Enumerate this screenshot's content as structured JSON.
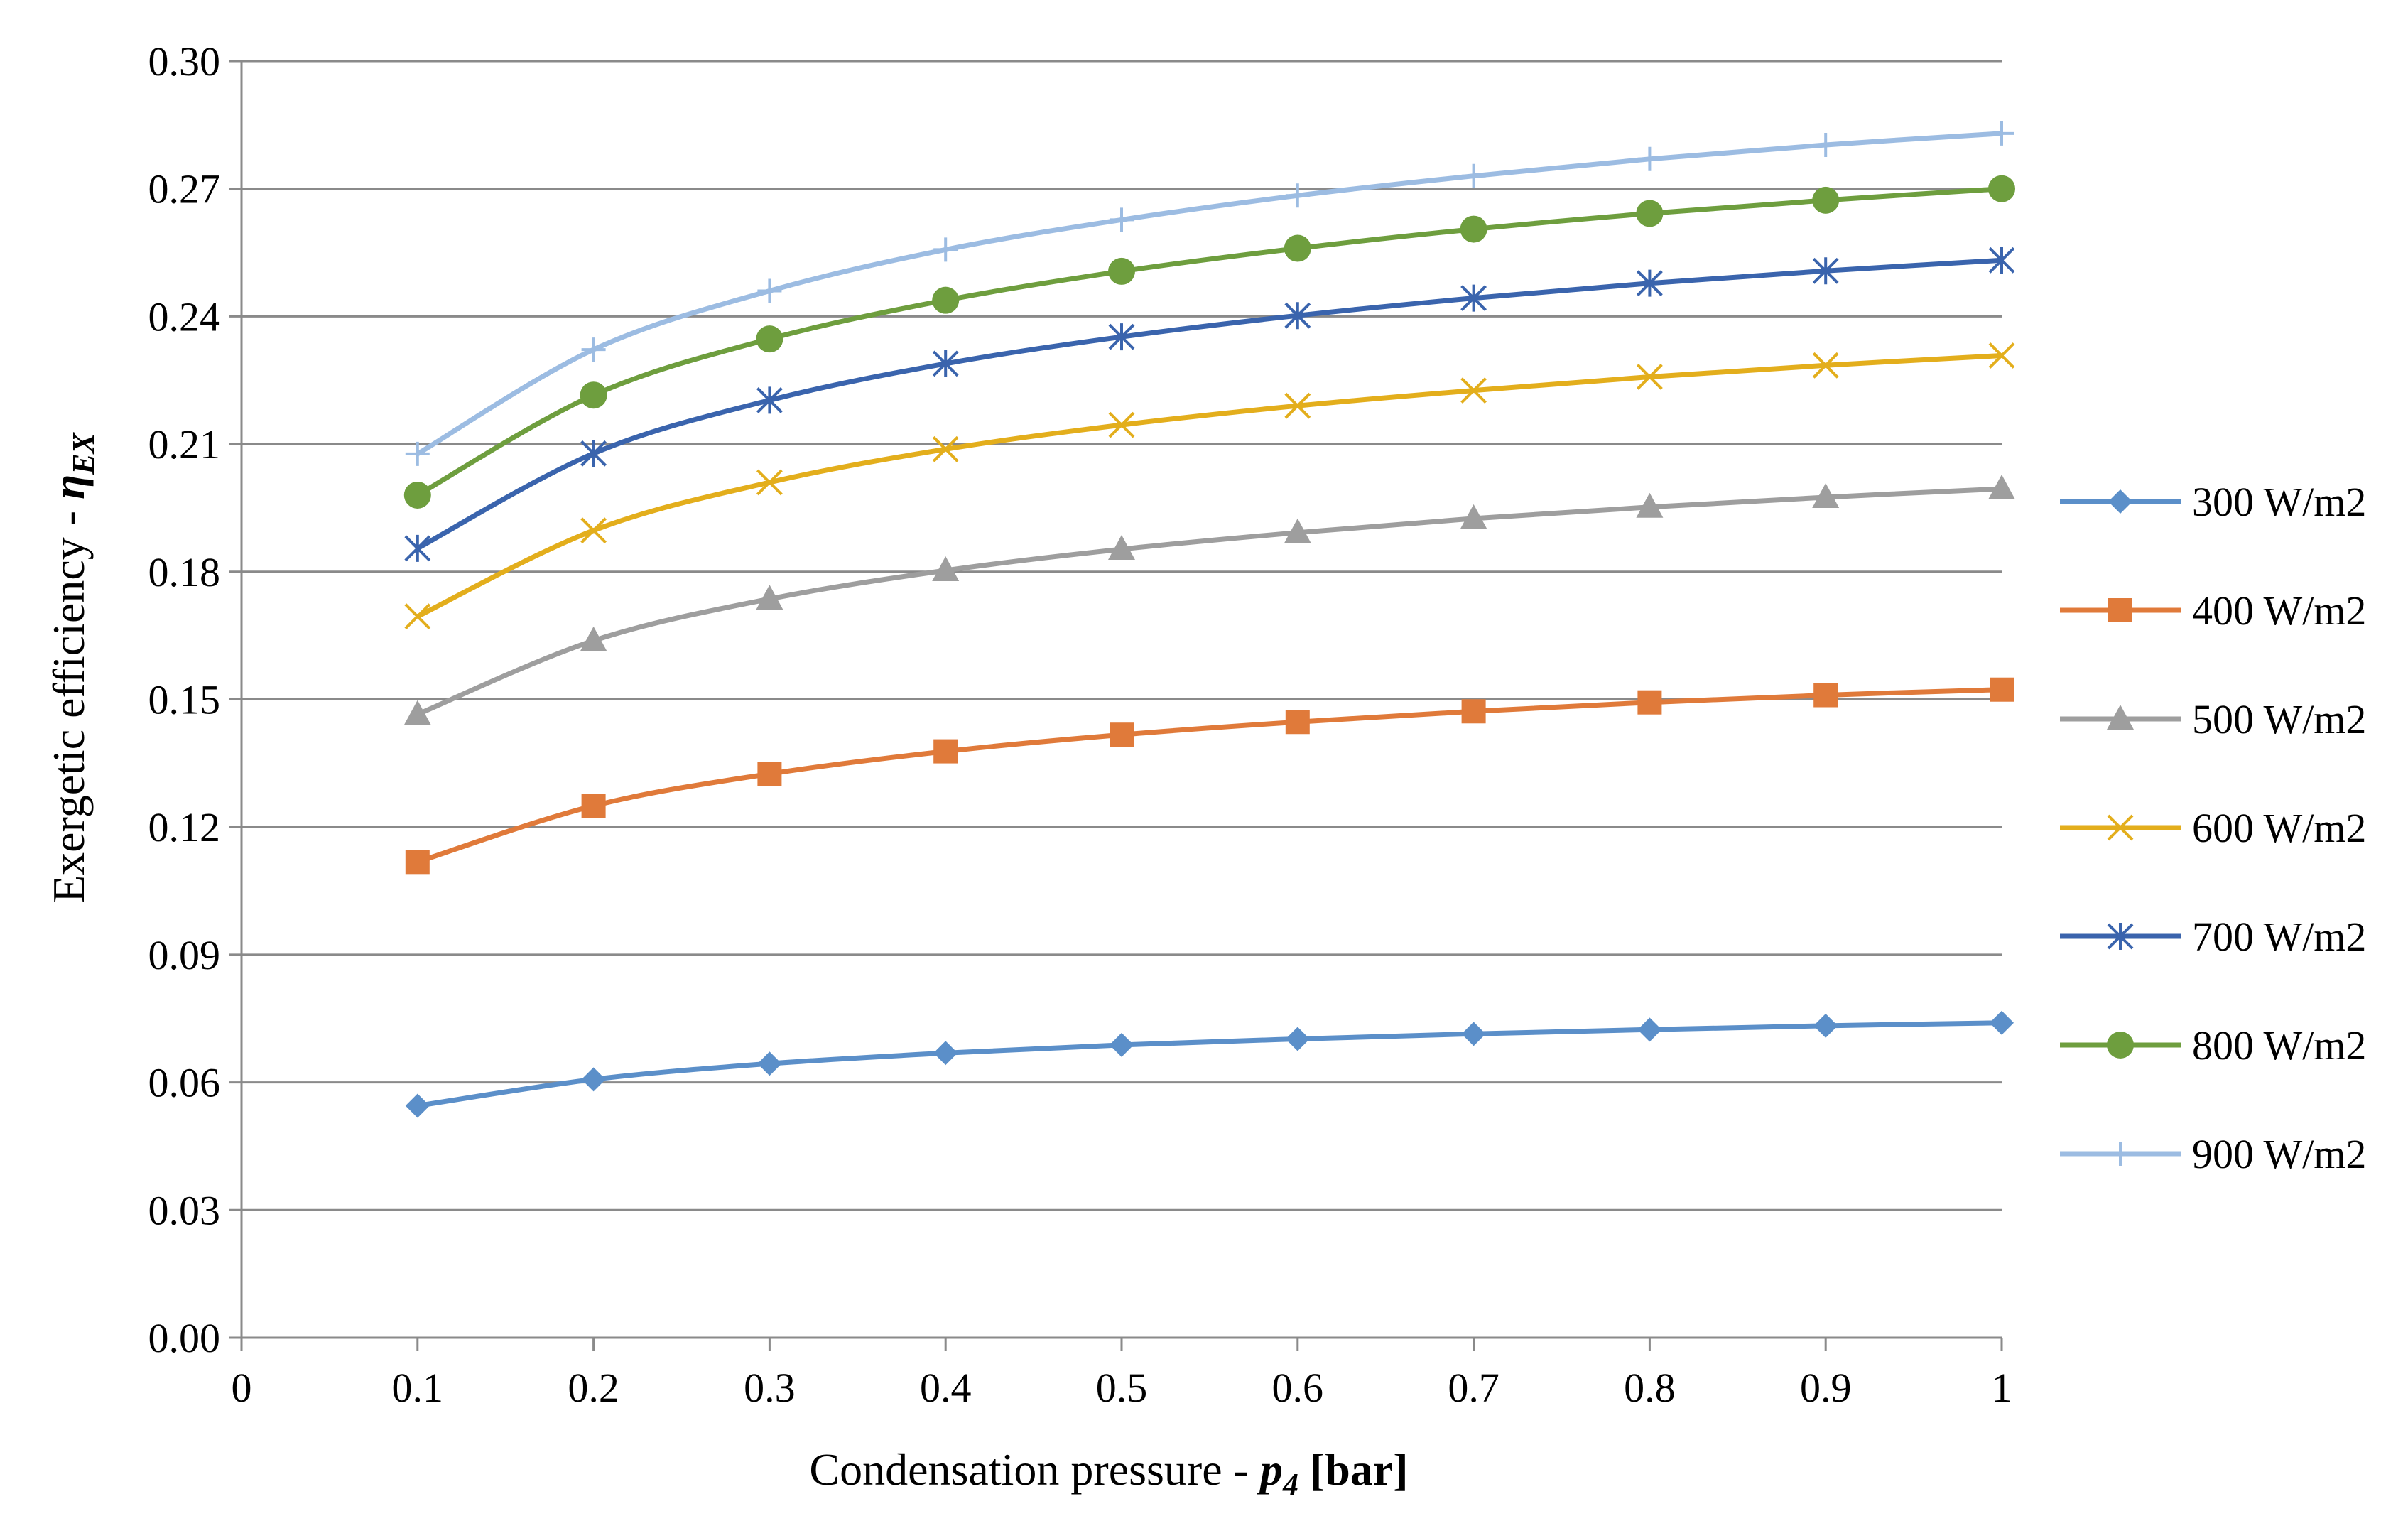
{
  "chart_data": {
    "type": "line",
    "title": "",
    "xlabel": {
      "prefix": "Condensation pressure - ",
      "symbol": "p",
      "subscript": "4",
      "unit": " [bar]"
    },
    "ylabel": {
      "prefix": "Exergetic efficiency - ",
      "symbol": "η",
      "subscript": "EX"
    },
    "xlim": [
      0,
      1
    ],
    "ylim": [
      0,
      0.3
    ],
    "x_ticks": [
      0,
      0.1,
      0.2,
      0.3,
      0.4,
      0.5,
      0.6,
      0.7,
      0.8,
      0.9,
      1
    ],
    "x_tick_labels": [
      "0",
      "0.1",
      "0.2",
      "0.3",
      "0.4",
      "0.5",
      "0.6",
      "0.7",
      "0.8",
      "0.9",
      "1"
    ],
    "y_ticks": [
      0,
      0.03,
      0.06,
      0.09,
      0.12,
      0.15,
      0.18,
      0.21,
      0.24,
      0.27,
      0.3
    ],
    "y_tick_labels": [
      "0.00",
      "0.03",
      "0.06",
      "0.09",
      "0.12",
      "0.15",
      "0.18",
      "0.21",
      "0.24",
      "0.27",
      "0.30"
    ],
    "grid": "horizontal",
    "legend_position": "right",
    "x": [
      0.1,
      0.2,
      0.3,
      0.4,
      0.5,
      0.6,
      0.7,
      0.8,
      0.9,
      1.0
    ],
    "series": [
      {
        "name": "300 W/m2",
        "color": "#5B8FC9",
        "marker": "diamond",
        "values": [
          0.0545,
          0.0607,
          0.0644,
          0.0669,
          0.0688,
          0.0702,
          0.0714,
          0.0724,
          0.0733,
          0.074
        ]
      },
      {
        "name": "400 W/m2",
        "color": "#E07A3A",
        "marker": "square",
        "values": [
          0.1118,
          0.125,
          0.1325,
          0.1378,
          0.1417,
          0.1447,
          0.1472,
          0.1493,
          0.151,
          0.1523
        ]
      },
      {
        "name": "500 W/m2",
        "color": "#9E9E9E",
        "marker": "triangle",
        "values": [
          0.1465,
          0.1638,
          0.1736,
          0.1803,
          0.1853,
          0.1892,
          0.1925,
          0.1952,
          0.1975,
          0.1995
        ]
      },
      {
        "name": "600 W/m2",
        "color": "#E3AE1C",
        "marker": "x",
        "values": [
          0.1695,
          0.1897,
          0.201,
          0.2088,
          0.2145,
          0.219,
          0.2226,
          0.2258,
          0.2285,
          0.2308
        ]
      },
      {
        "name": "700 W/m2",
        "color": "#3A64AD",
        "marker": "asterisk",
        "values": [
          0.1855,
          0.2078,
          0.2203,
          0.2289,
          0.2352,
          0.2402,
          0.2443,
          0.2478,
          0.2507,
          0.2532
        ]
      },
      {
        "name": "800 W/m2",
        "color": "#6E9E3E",
        "marker": "circle",
        "values": [
          0.198,
          0.2215,
          0.2347,
          0.2438,
          0.2506,
          0.256,
          0.2605,
          0.2642,
          0.2673,
          0.27
        ]
      },
      {
        "name": "900 W/m2",
        "color": "#9CBCE2",
        "marker": "plus",
        "values": [
          0.2077,
          0.2322,
          0.246,
          0.2557,
          0.2627,
          0.2684,
          0.273,
          0.277,
          0.2803,
          0.283
        ]
      }
    ]
  }
}
